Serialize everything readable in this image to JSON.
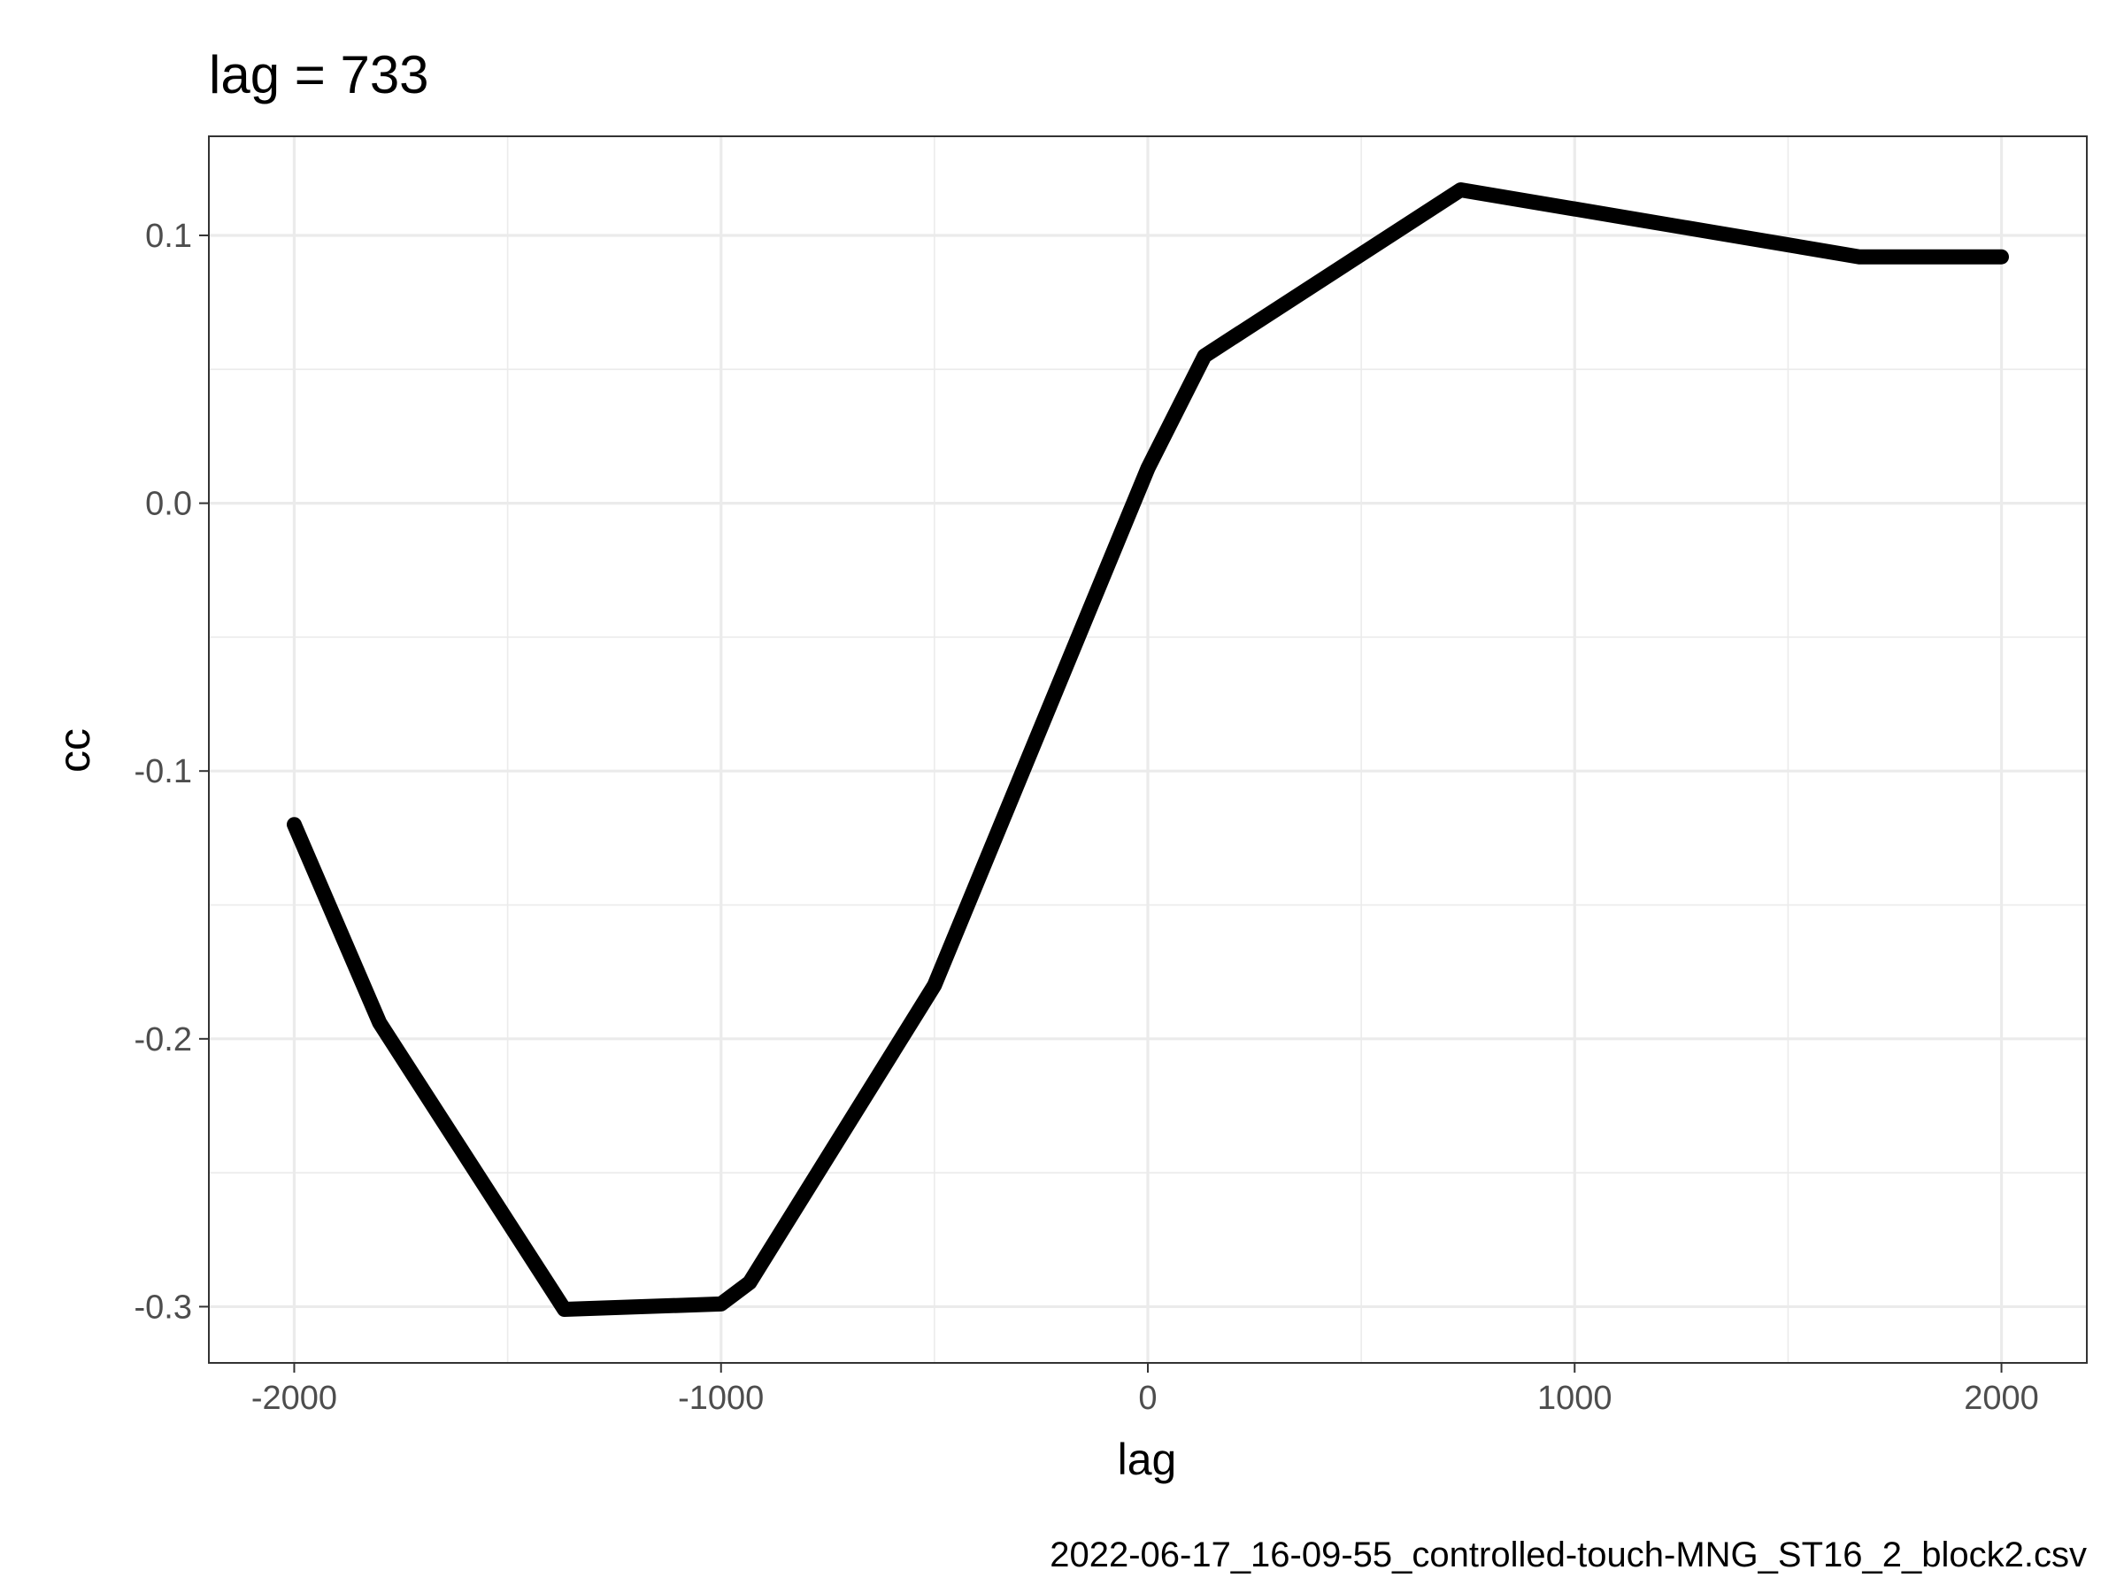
{
  "chart_data": {
    "type": "line",
    "title": "lag = 733",
    "xlabel": "lag",
    "ylabel": "cc",
    "caption": "2022-06-17_16-09-55_controlled-touch-MNG_ST16_2_block2.csv",
    "xlim": [
      -2200,
      2200
    ],
    "ylim": [
      -0.321,
      0.137
    ],
    "x_ticks": [
      -2000,
      -1000,
      0,
      1000,
      2000
    ],
    "x_tick_labels": [
      "-2000",
      "-1000",
      "0",
      "1000",
      "2000"
    ],
    "y_ticks": [
      -0.3,
      -0.2,
      -0.1,
      0.0,
      0.1
    ],
    "y_tick_labels": [
      "-0.3",
      "-0.2",
      "-0.1",
      "0.0",
      "0.1"
    ],
    "x_minor": [
      -1500,
      -500,
      500,
      1500
    ],
    "y_minor": [
      -0.25,
      -0.15,
      -0.05,
      0.05
    ],
    "grid": true,
    "line_color": "#000000",
    "series": [
      {
        "x": [
          -2000,
          -1800,
          -1367,
          -1000,
          -933,
          -500,
          0,
          133,
          733,
          1667,
          2000
        ],
        "values": [
          -0.12,
          -0.194,
          -0.301,
          -0.299,
          -0.291,
          -0.18,
          0.013,
          0.055,
          0.117,
          0.092,
          0.092
        ]
      }
    ]
  }
}
